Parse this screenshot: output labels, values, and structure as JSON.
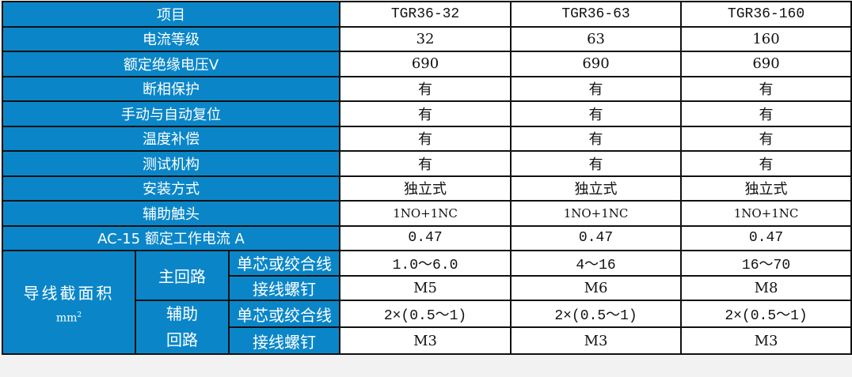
{
  "header": {
    "label": "项目",
    "models": [
      "TGR36-32",
      "TGR36-63",
      "TGR36-160"
    ]
  },
  "rows": [
    {
      "label": "电流等级",
      "values": [
        "32",
        "63",
        "160"
      ]
    },
    {
      "label": "额定绝缘电压V",
      "values": [
        "690",
        "690",
        "690"
      ]
    },
    {
      "label": "断相保护",
      "values": [
        "有",
        "有",
        "有"
      ]
    },
    {
      "label": "手动与自动复位",
      "values": [
        "有",
        "有",
        "有"
      ]
    },
    {
      "label": "温度补偿",
      "values": [
        "有",
        "有",
        "有"
      ]
    },
    {
      "label": "测试机构",
      "values": [
        "有",
        "有",
        "有"
      ]
    },
    {
      "label": "安装方式",
      "values": [
        "独立式",
        "独立式",
        "独立式"
      ]
    },
    {
      "label": "辅助触头",
      "values": [
        "1NO+1NC",
        "1NO+1NC",
        "1NO+1NC"
      ]
    },
    {
      "label": "AC-15 额定工作电流 A",
      "values": [
        "0.47",
        "0.47",
        "0.47"
      ]
    }
  ],
  "wire": {
    "label": "导线截面积",
    "unit": "mm",
    "unit_sup": "2",
    "main": {
      "label": "主回路",
      "rows": [
        {
          "label": "单芯或绞合线",
          "values": [
            "1.0～6.0",
            "4～16",
            "16～70"
          ]
        },
        {
          "label": "接线螺钉",
          "values": [
            "M5",
            "M6",
            "M8"
          ]
        }
      ]
    },
    "aux": {
      "label1": "辅助",
      "label2": "回路",
      "rows": [
        {
          "label": "单芯或绞合线",
          "values": [
            "2×(0.5～1)",
            "2×(0.5～1)",
            "2×(0.5～1)"
          ]
        },
        {
          "label": "接线螺钉",
          "values": [
            "M3",
            "M3",
            "M3"
          ]
        }
      ]
    }
  },
  "colors": {
    "header_bg": "#0a86c8",
    "header_text": "#ffffff",
    "border": "#111111"
  }
}
